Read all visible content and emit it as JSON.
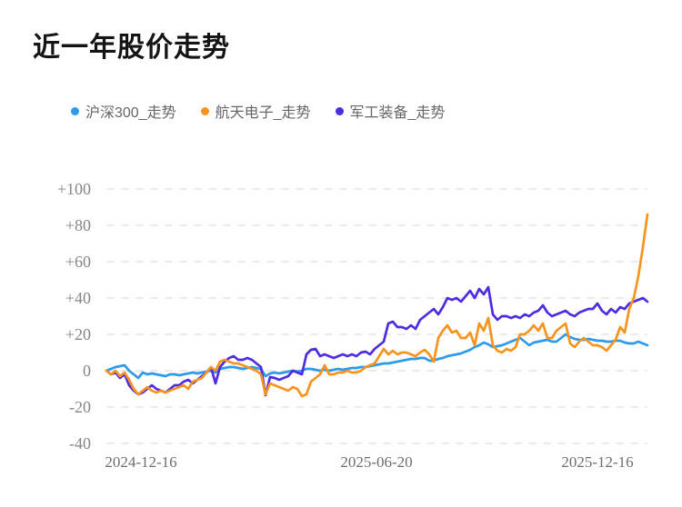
{
  "page": {
    "title": "近一年股价走势"
  },
  "chart_data": {
    "type": "line",
    "title": "近一年股价走势",
    "grid": "horizontal dashed",
    "legend_position": "top-left",
    "ylim": [
      -40,
      100
    ],
    "y_tick_labels": [
      "+100",
      "+80",
      "+60",
      "+40",
      "+20",
      "0",
      "-20",
      "-40"
    ],
    "x_tick_labels": [
      "2024-12-16",
      "2025-06-20",
      "2025-12-16"
    ],
    "x_start": "2024-12-16",
    "x_end": "2025-12-16",
    "series": [
      {
        "key": "hs300",
        "name": "沪深300_走势",
        "color": "#2e9bea",
        "z": 1,
        "values": [
          0,
          1,
          2,
          2.5,
          3,
          0,
          -2,
          -4,
          -1,
          -2,
          -1.5,
          -2,
          -2.5,
          -3,
          -2,
          -2,
          -2.5,
          -2,
          -1.5,
          -1,
          -1.5,
          -1,
          -0.5,
          0,
          -1,
          1,
          1.5,
          2,
          2,
          1.5,
          1,
          1.5,
          2,
          1.5,
          1,
          -3,
          -1.5,
          -1,
          -1.5,
          -1,
          -0.5,
          0,
          -0.5,
          0,
          1,
          1,
          0.5,
          0,
          0.5,
          0,
          0.5,
          1,
          0.5,
          1,
          1.5,
          1.5,
          2,
          2,
          2.5,
          3,
          3.5,
          4,
          4,
          4.5,
          5,
          5.5,
          6,
          6.5,
          6.5,
          7,
          7,
          5.5,
          5.5,
          6.5,
          7,
          8,
          8.5,
          9,
          9.5,
          10.5,
          11.5,
          13,
          14,
          15.5,
          14.5,
          13,
          13.5,
          14,
          15,
          16,
          17,
          18,
          16,
          14,
          15.5,
          16,
          16.5,
          17,
          16,
          16,
          18,
          20,
          18.5,
          17.5,
          17,
          17,
          17.5,
          17,
          16.5,
          16.5,
          16,
          16,
          16.5,
          16.5,
          15.5,
          15,
          15,
          16,
          15,
          14
        ]
      },
      {
        "key": "hangtian-dianzi",
        "name": "航天电子_走势",
        "color": "#f7941f",
        "z": 3,
        "values": [
          0,
          -2,
          0,
          -3,
          -1,
          -5,
          -10,
          -13,
          -11,
          -9,
          -11,
          -12,
          -11,
          -12,
          -11,
          -10,
          -9,
          -8,
          -10,
          -6,
          -5,
          -4,
          -1,
          2,
          0,
          5,
          6,
          5,
          4,
          4,
          3,
          2,
          1,
          0,
          -2,
          -13,
          -7,
          -8,
          -9,
          -10,
          -11,
          -9,
          -10,
          -14,
          -13,
          -6,
          -4,
          -2,
          3,
          -2,
          -2,
          -1,
          -1,
          0,
          -1,
          -1,
          0,
          2,
          3,
          4,
          8,
          12,
          9,
          11,
          9,
          10,
          10,
          9,
          8,
          10,
          11.5,
          9,
          5,
          18,
          22,
          25,
          21,
          22,
          18,
          18,
          21,
          14,
          26,
          22,
          29,
          14,
          11,
          10,
          12,
          11,
          13,
          20,
          20,
          22,
          25,
          22,
          26,
          18,
          18,
          22,
          24,
          26,
          15,
          13,
          16,
          18,
          16,
          14,
          14,
          13,
          11,
          14,
          17,
          24,
          21,
          34,
          40,
          52,
          68,
          86
        ]
      },
      {
        "key": "jungong-zhuangbei",
        "name": "军工装备_走势",
        "color": "#4e2ce2",
        "z": 2,
        "values": [
          0,
          -2,
          -1,
          -4,
          -2,
          -8,
          -11,
          -13,
          -12,
          -10,
          -8,
          -10,
          -11,
          -12,
          -10,
          -8,
          -8,
          -6,
          -5,
          -7,
          -5,
          -3,
          -1,
          2,
          -7,
          2,
          5,
          7,
          8,
          6,
          6,
          7,
          6,
          4,
          2,
          -13.5,
          -3.5,
          -4,
          -5,
          -4,
          -3,
          0,
          -1,
          -2,
          9,
          11.5,
          12,
          8,
          9,
          8,
          7,
          8,
          9,
          8,
          9,
          8,
          10,
          10.5,
          9,
          12,
          14,
          16,
          26,
          27,
          24,
          24,
          23,
          25,
          23,
          28,
          30,
          32,
          34,
          31,
          35,
          40,
          39,
          40,
          38,
          41,
          44,
          40,
          45,
          42,
          46,
          31,
          28,
          30,
          30,
          29,
          30,
          29,
          31,
          30,
          32,
          33,
          36,
          32,
          30,
          31,
          32,
          33,
          31,
          30,
          32,
          33,
          34,
          34,
          37,
          33,
          31,
          34,
          32,
          35,
          34,
          37,
          38,
          39,
          40,
          38
        ]
      }
    ]
  },
  "layout_hints": {
    "gridline_color": "#ebebeb",
    "title_color": "#141414",
    "axis_label_color": "#868686"
  }
}
